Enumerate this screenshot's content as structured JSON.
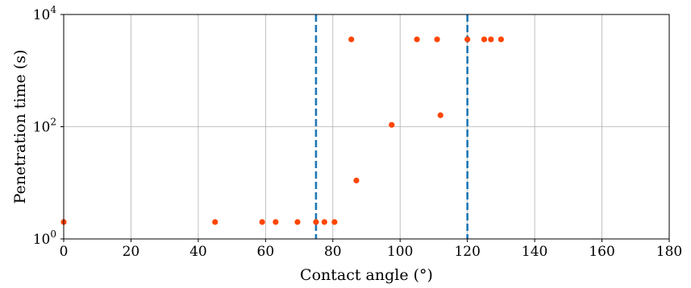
{
  "chart_data": {
    "type": "scatter",
    "title": "",
    "xlabel": "Contact angle (°)",
    "ylabel": "Penetration time (s)",
    "xlim": [
      0,
      180
    ],
    "ylim": [
      1,
      10000
    ],
    "yscale": "log",
    "grid": true,
    "x_ticks": [
      0,
      20,
      40,
      60,
      80,
      100,
      120,
      140,
      160,
      180
    ],
    "y_ticks": [
      {
        "value": 1,
        "base": "10",
        "exp": "0"
      },
      {
        "value": 100,
        "base": "10",
        "exp": "2"
      },
      {
        "value": 10000,
        "base": "10",
        "exp": "4"
      }
    ],
    "series": [
      {
        "color": "#ff4500",
        "points": [
          {
            "x": 0,
            "y": 2
          },
          {
            "x": 45,
            "y": 2
          },
          {
            "x": 59,
            "y": 2
          },
          {
            "x": 63,
            "y": 2
          },
          {
            "x": 69.5,
            "y": 2
          },
          {
            "x": 75,
            "y": 2
          },
          {
            "x": 77.5,
            "y": 2
          },
          {
            "x": 80.5,
            "y": 2
          },
          {
            "x": 85.5,
            "y": 3600
          },
          {
            "x": 87,
            "y": 11
          },
          {
            "x": 97.5,
            "y": 108
          },
          {
            "x": 105,
            "y": 3600
          },
          {
            "x": 111,
            "y": 3600
          },
          {
            "x": 112,
            "y": 160
          },
          {
            "x": 120,
            "y": 3600
          },
          {
            "x": 125,
            "y": 3600
          },
          {
            "x": 127,
            "y": 3600
          },
          {
            "x": 130,
            "y": 3600
          }
        ]
      }
    ],
    "reference_lines": [
      {
        "x": 75,
        "color": "#1f77b4",
        "style": "dashed"
      },
      {
        "x": 120,
        "color": "#1f77b4",
        "style": "dashed"
      }
    ]
  }
}
